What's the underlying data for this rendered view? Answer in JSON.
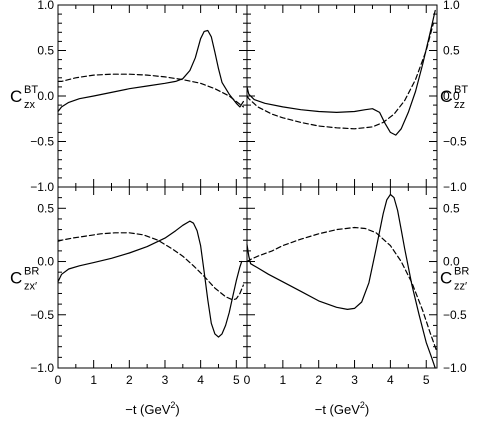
{
  "chart_data": [
    {
      "panel": "top-left",
      "type": "line",
      "ylabel": {
        "main": "C",
        "sup": "BT",
        "sub": "zx"
      },
      "xlim": [
        0,
        5.3
      ],
      "ylim": [
        -1.0,
        1.0
      ],
      "y_ticks": [
        -1.0,
        -0.5,
        0.0,
        0.5,
        1.0
      ],
      "y_tick_labels": [
        "−1.0",
        "−0.5",
        "0.0",
        "0.5",
        "1.0"
      ],
      "series": [
        {
          "style": "solid",
          "x": [
            0.0,
            0.1,
            0.3,
            0.6,
            1.0,
            1.5,
            2.0,
            2.5,
            3.0,
            3.3,
            3.5,
            3.7,
            3.85,
            4.0,
            4.1,
            4.2,
            4.3,
            4.4,
            4.5,
            4.6,
            4.8,
            5.0,
            5.1,
            5.2
          ],
          "y": [
            -0.17,
            -0.12,
            -0.07,
            -0.03,
            0.0,
            0.04,
            0.08,
            0.11,
            0.14,
            0.16,
            0.19,
            0.28,
            0.42,
            0.63,
            0.71,
            0.72,
            0.65,
            0.48,
            0.3,
            0.15,
            0.02,
            -0.08,
            -0.12,
            -0.06
          ]
        },
        {
          "style": "dashed",
          "x": [
            0.0,
            0.1,
            0.5,
            1.0,
            1.5,
            2.0,
            2.5,
            3.0,
            3.5,
            4.0,
            4.4,
            4.8,
            5.0,
            5.2
          ],
          "y": [
            0.16,
            0.16,
            0.2,
            0.23,
            0.24,
            0.24,
            0.23,
            0.21,
            0.18,
            0.14,
            0.08,
            0.0,
            -0.06,
            -0.12
          ]
        }
      ]
    },
    {
      "panel": "top-right",
      "type": "line",
      "ylabel": {
        "main": "C",
        "sup": "BT",
        "sub": "zz"
      },
      "xlim": [
        0,
        5.3
      ],
      "ylim": [
        -1.0,
        1.0
      ],
      "y_ticks": [
        -1.0,
        -0.5,
        0.0,
        0.5,
        1.0
      ],
      "y_tick_labels": [
        "−1.0",
        "−0.5",
        "0.0",
        "0.5",
        "1.0"
      ],
      "series": [
        {
          "style": "solid",
          "x": [
            0.0,
            0.05,
            0.2,
            0.5,
            1.0,
            1.5,
            2.0,
            2.5,
            3.0,
            3.3,
            3.5,
            3.7,
            3.85,
            4.0,
            4.15,
            4.3,
            4.5,
            4.7,
            4.9,
            5.1,
            5.25
          ],
          "y": [
            0.1,
            0.02,
            -0.04,
            -0.08,
            -0.12,
            -0.15,
            -0.17,
            -0.18,
            -0.17,
            -0.15,
            -0.14,
            -0.18,
            -0.3,
            -0.4,
            -0.43,
            -0.36,
            -0.18,
            0.05,
            0.35,
            0.68,
            0.94
          ]
        },
        {
          "style": "dashed",
          "x": [
            0.0,
            0.05,
            0.3,
            0.7,
            1.0,
            1.5,
            2.0,
            2.5,
            3.0,
            3.5,
            3.8,
            4.1,
            4.4,
            4.7,
            5.0,
            5.2
          ],
          "y": [
            0.0,
            -0.03,
            -0.12,
            -0.2,
            -0.24,
            -0.29,
            -0.33,
            -0.35,
            -0.36,
            -0.34,
            -0.29,
            -0.2,
            -0.05,
            0.18,
            0.5,
            0.8
          ]
        }
      ]
    },
    {
      "panel": "bottom-left",
      "type": "line",
      "ylabel": {
        "main": "C",
        "sup": "BR",
        "sub": "zx′"
      },
      "xlim": [
        0,
        5.3
      ],
      "ylim": [
        -1.0,
        0.7
      ],
      "x_ticks": [
        0,
        1,
        2,
        3,
        4,
        5
      ],
      "x_tick_labels": [
        "0",
        "1",
        "2",
        "3",
        "4",
        "5"
      ],
      "xlabel": {
        "main": "−t  (GeV",
        "sup": "2",
        "close": ")"
      },
      "y_ticks": [
        -1.0,
        -0.5,
        0.0,
        0.5
      ],
      "y_tick_labels": [
        "−1.0",
        "−0.5",
        "0.0",
        "0.5"
      ],
      "series": [
        {
          "style": "solid",
          "x": [
            0.0,
            0.1,
            0.3,
            0.6,
            1.0,
            1.5,
            2.0,
            2.5,
            3.0,
            3.3,
            3.5,
            3.7,
            3.8,
            3.9,
            4.0,
            4.1,
            4.2,
            4.3,
            4.4,
            4.5,
            4.6,
            4.7,
            4.8,
            4.9,
            5.0,
            5.1,
            5.15
          ],
          "y": [
            -0.19,
            -0.12,
            -0.07,
            -0.04,
            -0.01,
            0.03,
            0.08,
            0.14,
            0.22,
            0.29,
            0.34,
            0.38,
            0.36,
            0.29,
            0.15,
            -0.1,
            -0.36,
            -0.58,
            -0.68,
            -0.71,
            -0.68,
            -0.6,
            -0.48,
            -0.33,
            -0.18,
            -0.05,
            0.0
          ]
        },
        {
          "style": "dashed",
          "x": [
            0.0,
            0.1,
            0.4,
            0.8,
            1.2,
            1.6,
            2.0,
            2.4,
            2.8,
            3.2,
            3.5,
            3.8,
            4.1,
            4.4,
            4.7,
            4.9,
            5.0,
            5.1,
            5.2
          ],
          "y": [
            0.19,
            0.2,
            0.22,
            0.24,
            0.26,
            0.27,
            0.27,
            0.25,
            0.2,
            0.12,
            0.05,
            -0.04,
            -0.14,
            -0.25,
            -0.33,
            -0.36,
            -0.35,
            -0.3,
            -0.22
          ]
        }
      ]
    },
    {
      "panel": "bottom-right",
      "type": "line",
      "ylabel": {
        "main": "C",
        "sup": "BR",
        "sub": "zz′"
      },
      "xlim": [
        0,
        5.3
      ],
      "ylim": [
        -1.0,
        0.7
      ],
      "x_ticks": [
        0,
        1,
        2,
        3,
        4,
        5
      ],
      "x_tick_labels": [
        "0",
        "1",
        "2",
        "3",
        "4",
        "5"
      ],
      "xlabel": {
        "main": "−t  (GeV",
        "sup": "2",
        "close": ")"
      },
      "y_ticks": [
        -1.0,
        -0.5,
        0.0,
        0.5
      ],
      "y_tick_labels": [
        "−1.0",
        "−0.5",
        "0.0",
        "0.5"
      ],
      "series": [
        {
          "style": "solid",
          "x": [
            0.0,
            0.05,
            0.1,
            0.3,
            0.6,
            1.0,
            1.5,
            2.0,
            2.5,
            2.8,
            3.0,
            3.2,
            3.4,
            3.6,
            3.8,
            3.9,
            4.0,
            4.1,
            4.2,
            4.3,
            4.4,
            4.5,
            4.6,
            4.8,
            5.0,
            5.15,
            5.25
          ],
          "y": [
            0.16,
            0.05,
            -0.02,
            -0.06,
            -0.12,
            -0.19,
            -0.28,
            -0.37,
            -0.43,
            -0.45,
            -0.44,
            -0.38,
            -0.2,
            0.12,
            0.45,
            0.58,
            0.63,
            0.6,
            0.48,
            0.3,
            0.12,
            -0.05,
            -0.22,
            -0.5,
            -0.76,
            -0.9,
            -1.0
          ]
        },
        {
          "style": "dashed",
          "x": [
            0.0,
            0.1,
            0.3,
            0.7,
            1.0,
            1.5,
            2.0,
            2.5,
            3.0,
            3.3,
            3.6,
            4.0,
            4.3,
            4.6,
            4.9,
            5.1,
            5.3
          ],
          "y": [
            0.0,
            0.02,
            0.05,
            0.1,
            0.15,
            0.21,
            0.26,
            0.3,
            0.32,
            0.31,
            0.27,
            0.15,
            0.0,
            -0.2,
            -0.46,
            -0.66,
            -0.85
          ]
        }
      ]
    }
  ]
}
